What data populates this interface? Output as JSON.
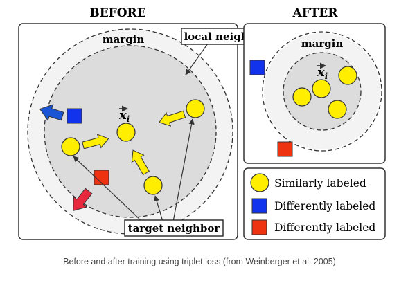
{
  "before": {
    "title": "BEFORE",
    "margin_label": "margin"
  },
  "after": {
    "title": "AFTER",
    "margin_label": "margin"
  },
  "callouts": {
    "local_neighborhood": "local neighborhood",
    "target_neighbor": "target neighbor"
  },
  "point_label": "x",
  "point_subscript": "i",
  "legend": {
    "items": [
      {
        "label": "Similarly labeled",
        "marker": "circle",
        "color": "#ffee00"
      },
      {
        "label": "Differently labeled",
        "marker": "square",
        "color": "#1133ee"
      },
      {
        "label": "Differently labeled",
        "marker": "square",
        "color": "#ee3311"
      }
    ]
  },
  "colors": {
    "similar": "#ffee00",
    "different_blue": "#1133ee",
    "different_red": "#ee3311",
    "push_arrow_blue": "#1a55d6",
    "push_arrow_red": "#e8283c"
  },
  "caption": "Before and after training using triplet loss (from Weinberger et al. 2005)"
}
